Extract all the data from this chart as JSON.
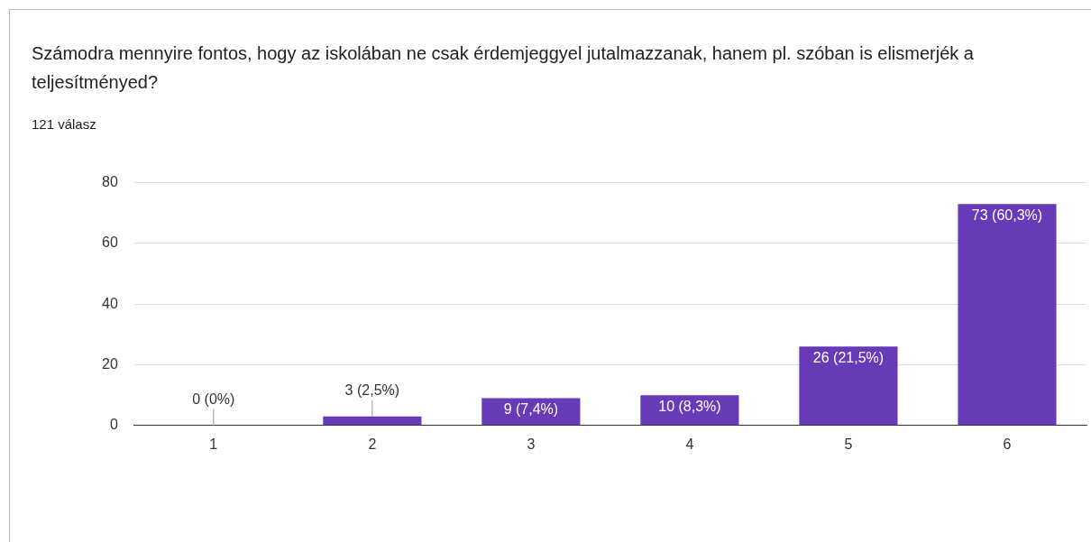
{
  "chart_data": {
    "type": "bar",
    "title": "Számodra mennyire fontos, hogy az iskolában ne csak érdemjeggyel jutalmazzanak, hanem pl. szóban is elismerjék a teljesítményed?",
    "subtitle": "121 válasz",
    "categories": [
      "1",
      "2",
      "3",
      "4",
      "5",
      "6"
    ],
    "values": [
      0,
      3,
      9,
      10,
      26,
      73
    ],
    "value_labels": [
      "0 (0%)",
      "3 (2,5%)",
      "9 (7,4%)",
      "10 (8,3%)",
      "26 (21,5%)",
      "73 (60,3%)"
    ],
    "color": "#673ab7",
    "ylim": [
      0,
      80
    ],
    "yticks": [
      0,
      20,
      40,
      60,
      80
    ],
    "grid": "y",
    "legend": false
  }
}
